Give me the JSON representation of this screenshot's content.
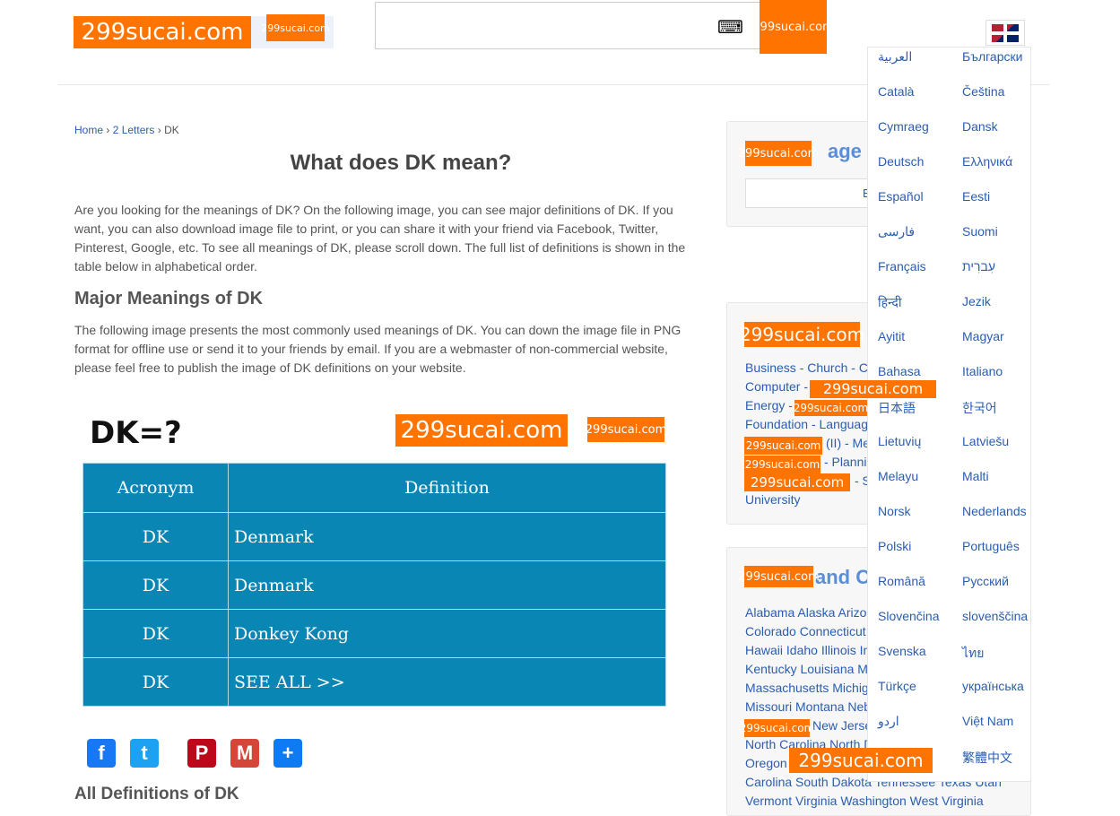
{
  "watermark": "299sucai.com",
  "header": {
    "keyboard_icon": "⌨",
    "flag": "US/UK flag"
  },
  "breadcrumb": {
    "home": "Home",
    "sep": "›",
    "level": "2 Letters",
    "current": "DK"
  },
  "main": {
    "title": "What does DK mean?",
    "intro": "Are you looking for the meanings of DK? On the following image, you can see major definitions of DK. If you want, you can also download image file to print, or you can share it with your friend via Facebook, Twitter, Pinterest, Google, etc. To see all meanings of DK, please scroll down. The full list of definitions is shown in the table below in alphabetical order.",
    "major_heading": "Major Meanings of DK",
    "major_text": "The following image presents the most commonly used meanings of DK. You can down the image file in PNG format for offline use or send it to your friends by email. If you are a webmaster of non-commercial website, please feel free to publish the image of DK definitions on your website.",
    "image": {
      "caption": "DK=?",
      "headers": [
        "Acronym",
        "Definition"
      ],
      "rows": [
        [
          "DK",
          "Denmark"
        ],
        [
          "DK",
          "Denmark"
        ],
        [
          "DK",
          "Donkey Kong"
        ],
        [
          "DK",
          "SEE ALL >>"
        ]
      ]
    },
    "share": [
      {
        "name": "facebook",
        "glyph": "f",
        "color": "#1877f2"
      },
      {
        "name": "twitter",
        "glyph": "t",
        "color": "#1da1f2"
      },
      {
        "name": "pinterest",
        "glyph": "P",
        "color": "#bd081c"
      },
      {
        "name": "gmail",
        "glyph": "M",
        "color": "#d44638"
      },
      {
        "name": "share",
        "glyph": "+",
        "color": "#0f7bf2"
      }
    ],
    "all_heading": "All Definitions of DK"
  },
  "sidebar": {
    "box1": {
      "title": "age",
      "button": "E"
    },
    "box2": {
      "lines": [
        "Business - Church - C",
        "Computer -",
        "Energy -",
        "Foundation - Languag",
        "(II) - Me",
        "- Plannin",
        "- S",
        "University"
      ]
    },
    "box3": {
      "title": "and C",
      "lines": [
        "Alabama Alaska Arizo",
        "Colorado Connecticut",
        "Hawaii Idaho Illinois In",
        "Kentucky Louisiana M",
        "Massachusetts Michig",
        "Missouri Montana Neb",
        "New Jerse",
        "North Carolina North D",
        "Oregon",
        "Carolina South Dakota Tennessee Texas Utah",
        "Vermont Virginia  Washington West Virginia"
      ]
    }
  },
  "languages": [
    "العربية",
    "Български",
    "Català",
    "Čeština",
    "Cymraeg",
    "Dansk",
    "Deutsch",
    "Ελληνικά",
    "Español",
    "Eesti",
    "فارسی",
    "Suomi",
    "Français",
    "עִברִית",
    "हिन्दी",
    "Jezik",
    "Ayitit",
    "Magyar",
    "Bahasa",
    "Italiano",
    "日本語",
    "한국어",
    "Lietuvių",
    "Latviešu",
    "Melayu",
    "Malti",
    "Norsk",
    "Nederlands",
    "Polski",
    "Português",
    "Română",
    "Русский",
    "Slovenčina",
    "slovenščina",
    "Svenska",
    "ไทย",
    "Türkçe",
    "українська",
    "اردو",
    "Việt Nam",
    "",
    "繁體中文"
  ]
}
